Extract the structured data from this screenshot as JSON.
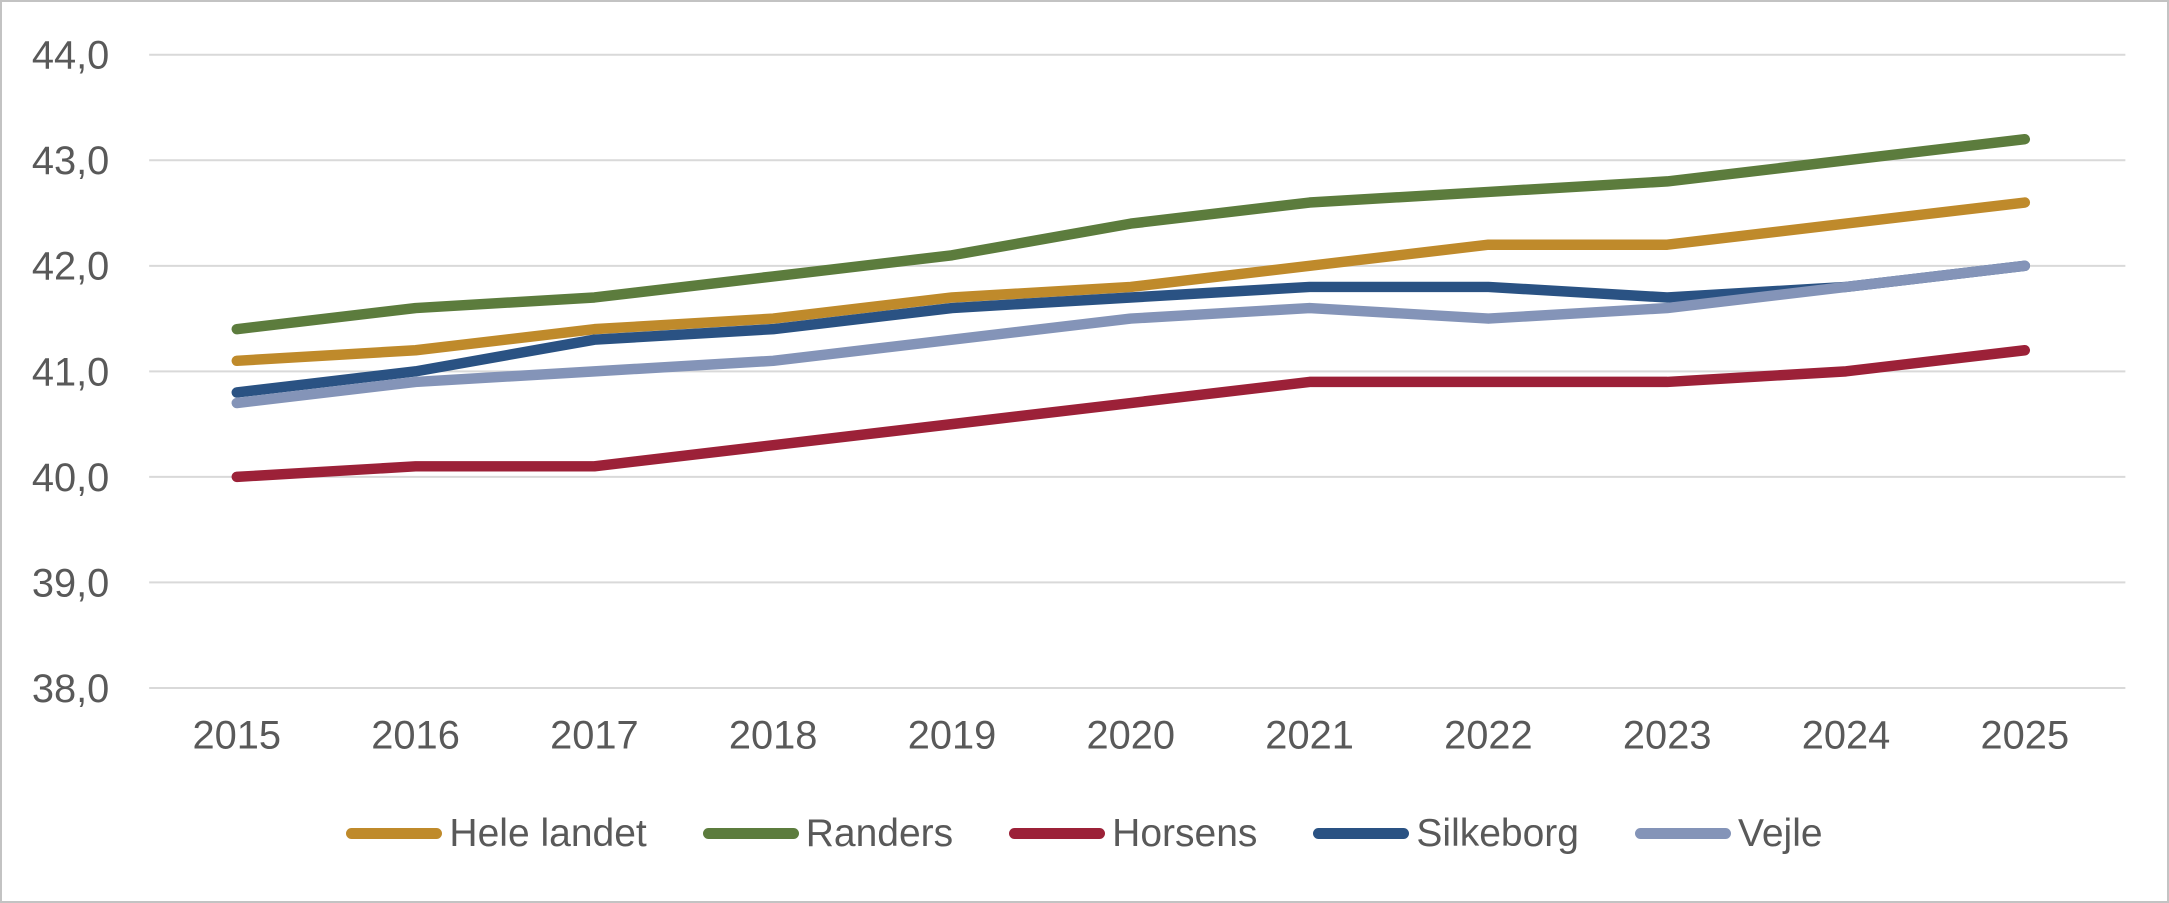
{
  "chart_data": {
    "type": "line",
    "title": "",
    "categories": [
      "2015",
      "2016",
      "2017",
      "2018",
      "2019",
      "2020",
      "2021",
      "2022",
      "2023",
      "2024",
      "2025"
    ],
    "series": [
      {
        "name": "Hele landet",
        "color": "#BF8A2B",
        "values": [
          41.1,
          41.2,
          41.4,
          41.5,
          41.7,
          41.8,
          42.0,
          42.2,
          42.2,
          42.4,
          42.6
        ]
      },
      {
        "name": "Randers",
        "color": "#5C7C3D",
        "values": [
          41.4,
          41.6,
          41.7,
          41.9,
          42.1,
          42.4,
          42.6,
          42.7,
          42.8,
          43.0,
          43.2
        ]
      },
      {
        "name": "Horsens",
        "color": "#9C2138",
        "values": [
          40.0,
          40.1,
          40.1,
          40.3,
          40.5,
          40.7,
          40.9,
          40.9,
          40.9,
          41.0,
          41.2
        ]
      },
      {
        "name": "Silkeborg",
        "color": "#2A5283",
        "values": [
          40.8,
          41.0,
          41.3,
          41.4,
          41.6,
          41.7,
          41.8,
          41.8,
          41.7,
          41.8,
          42.0
        ]
      },
      {
        "name": "Vejle",
        "color": "#8494B8",
        "values": [
          40.7,
          40.9,
          41.0,
          41.1,
          41.3,
          41.5,
          41.6,
          41.5,
          41.6,
          41.8,
          42.0
        ]
      }
    ],
    "y_axis": {
      "min": 38.0,
      "max": 44.0,
      "step": 1.0,
      "tick_labels": [
        "38,0",
        "39,0",
        "40,0",
        "41,0",
        "42,0",
        "43,0",
        "44,0"
      ],
      "decimal_separator": ","
    },
    "x_axis": {
      "tick_labels": [
        "2015",
        "2016",
        "2017",
        "2018",
        "2019",
        "2020",
        "2021",
        "2022",
        "2023",
        "2024",
        "2025"
      ]
    },
    "legend_position": "bottom",
    "grid": true,
    "style": {
      "gridline_color": "#d9d9d9",
      "axis_label_color": "#595959",
      "background": "#ffffff",
      "line_width": 10.5
    }
  }
}
